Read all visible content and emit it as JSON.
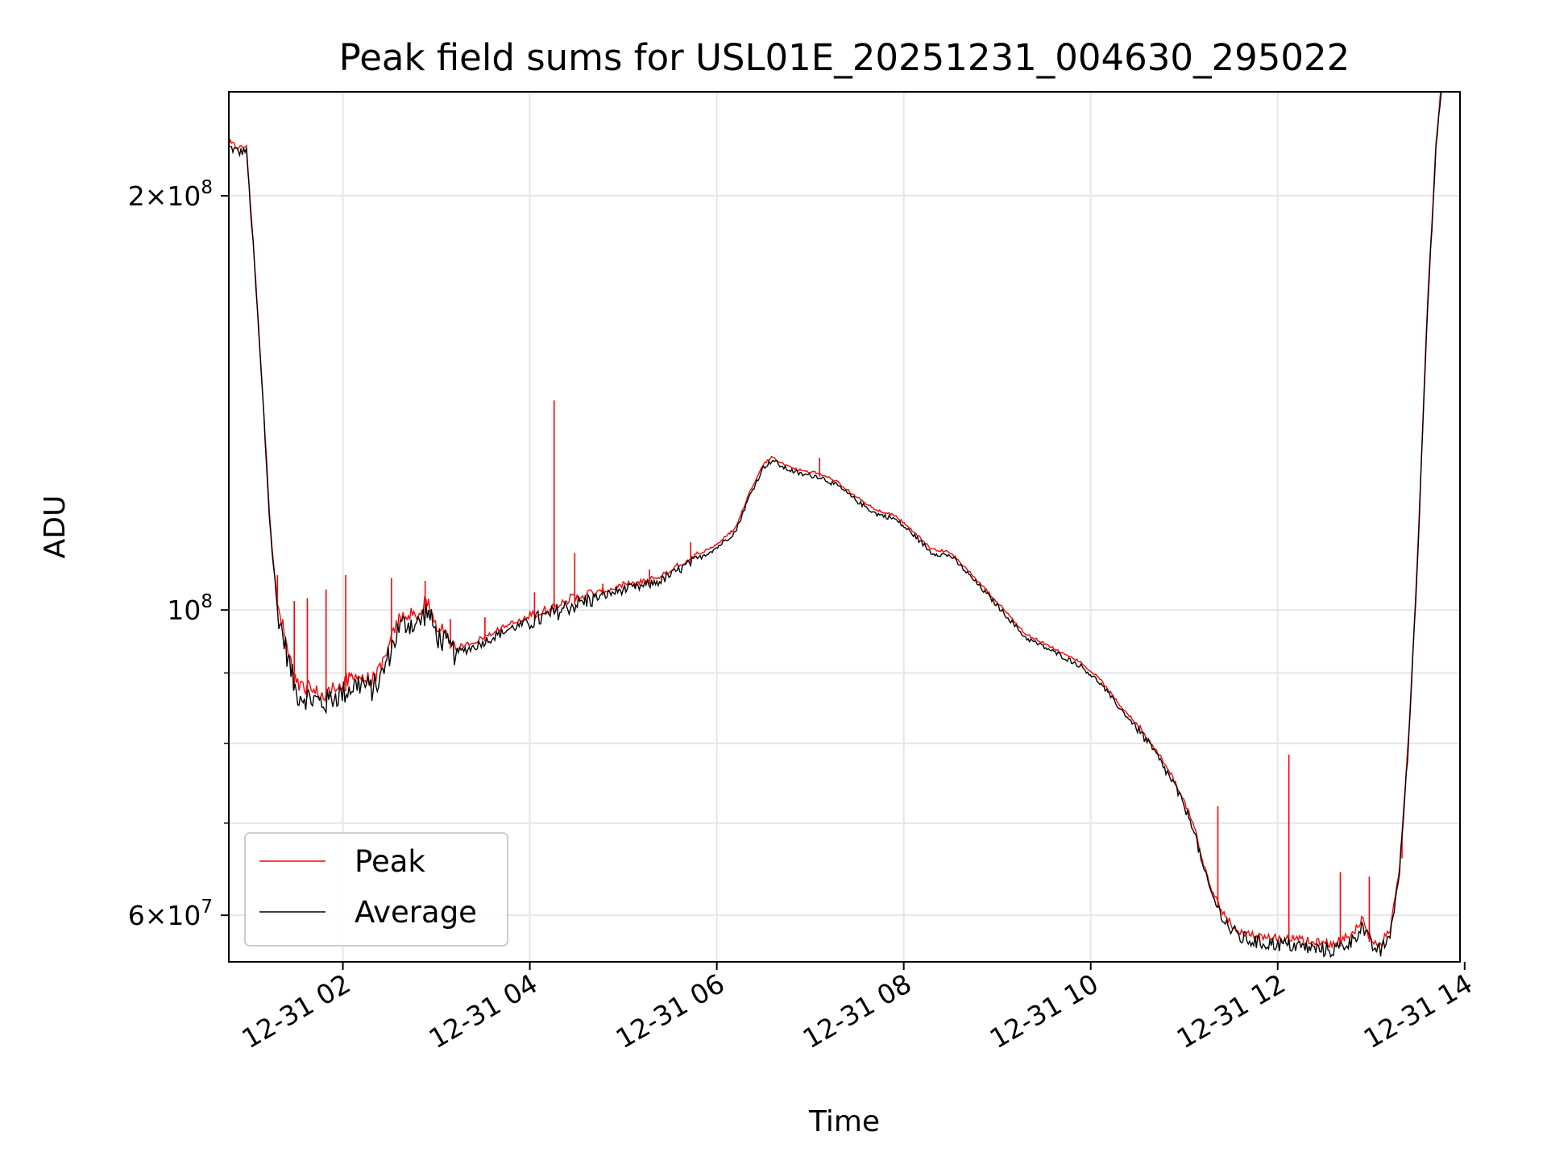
{
  "chart_data": {
    "type": "line",
    "title": "Peak field sums for USL01E_20251231_004630_295022",
    "xlabel": "Time",
    "ylabel": "ADU",
    "yscale": "log",
    "xlim": [
      0.78,
      13.95
    ],
    "ylim": [
      55500000,
      238000000
    ],
    "grid": true,
    "legend": "lower-left",
    "x_ticks": [
      {
        "value": 2,
        "label": "12-31 02"
      },
      {
        "value": 4,
        "label": "12-31 04"
      },
      {
        "value": 6,
        "label": "12-31 06"
      },
      {
        "value": 8,
        "label": "12-31 08"
      },
      {
        "value": 10,
        "label": "12-31 10"
      },
      {
        "value": 12,
        "label": "12-31 12"
      },
      {
        "value": 14,
        "label": "12-31 14"
      }
    ],
    "y_ticks": [
      {
        "value": 60000000,
        "mant": "6",
        "exp": "7"
      },
      {
        "value": 100000000,
        "mant": "",
        "exp": "8"
      },
      {
        "value": 200000000,
        "mant": "2",
        "exp": "8"
      }
    ],
    "y_minor": [
      70000000,
      80000000,
      90000000
    ],
    "x_time_unit": "hours since 12-31 00:00",
    "series": [
      {
        "name": "Average",
        "color": "#000000",
        "points": [
          [
            0.78,
            217000000
          ],
          [
            0.9,
            215000000
          ],
          [
            0.95,
            216000000
          ],
          [
            0.97,
            215000000
          ],
          [
            1.05,
            180000000
          ],
          [
            1.15,
            140000000
          ],
          [
            1.22,
            115000000
          ],
          [
            1.3,
            100000000
          ],
          [
            1.4,
            93000000
          ],
          [
            1.5,
            87000000
          ],
          [
            1.6,
            86500000
          ],
          [
            1.7,
            86000000
          ],
          [
            1.8,
            85500000
          ],
          [
            1.9,
            86500000
          ],
          [
            2.0,
            87000000
          ],
          [
            2.1,
            88000000
          ],
          [
            2.2,
            88500000
          ],
          [
            2.3,
            87500000
          ],
          [
            2.4,
            89000000
          ],
          [
            2.5,
            93000000
          ],
          [
            2.6,
            97000000
          ],
          [
            2.7,
            98000000
          ],
          [
            2.8,
            97500000
          ],
          [
            2.9,
            100000000
          ],
          [
            3.0,
            96000000
          ],
          [
            3.2,
            93000000
          ],
          [
            3.4,
            94000000
          ],
          [
            3.6,
            95500000
          ],
          [
            3.8,
            97000000
          ],
          [
            4.0,
            98000000
          ],
          [
            4.2,
            99000000
          ],
          [
            4.4,
            100500000
          ],
          [
            4.6,
            101500000
          ],
          [
            4.8,
            102500000
          ],
          [
            5.0,
            103500000
          ],
          [
            5.2,
            104000000
          ],
          [
            5.4,
            105000000
          ],
          [
            5.6,
            107000000
          ],
          [
            5.8,
            109000000
          ],
          [
            6.0,
            111000000
          ],
          [
            6.2,
            114000000
          ],
          [
            6.35,
            121000000
          ],
          [
            6.5,
            127000000
          ],
          [
            6.6,
            128500000
          ],
          [
            6.7,
            127000000
          ],
          [
            6.9,
            125500000
          ],
          [
            7.1,
            125000000
          ],
          [
            7.3,
            123000000
          ],
          [
            7.5,
            120000000
          ],
          [
            7.7,
            117500000
          ],
          [
            7.9,
            116500000
          ],
          [
            8.1,
            113500000
          ],
          [
            8.3,
            110000000
          ],
          [
            8.5,
            109500000
          ],
          [
            8.7,
            106000000
          ],
          [
            8.9,
            102500000
          ],
          [
            9.1,
            99000000
          ],
          [
            9.3,
            95500000
          ],
          [
            9.5,
            94000000
          ],
          [
            9.7,
            92500000
          ],
          [
            9.9,
            91000000
          ],
          [
            10.1,
            88500000
          ],
          [
            10.3,
            85000000
          ],
          [
            10.5,
            82000000
          ],
          [
            10.7,
            78500000
          ],
          [
            10.9,
            74500000
          ],
          [
            11.1,
            69500000
          ],
          [
            11.2,
            65000000
          ],
          [
            11.3,
            62000000
          ],
          [
            11.4,
            60000000
          ],
          [
            11.5,
            58500000
          ],
          [
            11.6,
            57800000
          ],
          [
            11.8,
            57300000
          ],
          [
            12.0,
            57200000
          ],
          [
            12.2,
            57000000
          ],
          [
            12.4,
            56700000
          ],
          [
            12.6,
            56600000
          ],
          [
            12.8,
            57500000
          ],
          [
            12.9,
            59000000
          ],
          [
            13.0,
            57000000
          ],
          [
            13.1,
            56500000
          ],
          [
            13.2,
            58000000
          ],
          [
            13.3,
            64000000
          ],
          [
            13.4,
            80000000
          ],
          [
            13.5,
            110000000
          ],
          [
            13.6,
            165000000
          ],
          [
            13.7,
            220000000
          ],
          [
            13.75,
            238000000
          ]
        ]
      },
      {
        "name": "Peak",
        "color": "#ff0000",
        "spikes": [
          [
            1.3,
            106000000
          ],
          [
            1.48,
            101500000
          ],
          [
            1.62,
            102000000
          ],
          [
            1.82,
            103500000
          ],
          [
            2.03,
            106000000
          ],
          [
            2.52,
            105500000
          ],
          [
            2.88,
            105000000
          ],
          [
            3.15,
            98500000
          ],
          [
            3.52,
            98800000
          ],
          [
            4.05,
            103000000
          ],
          [
            4.26,
            142000000
          ],
          [
            4.48,
            110000000
          ],
          [
            4.78,
            104500000
          ],
          [
            5.02,
            104000000
          ],
          [
            5.28,
            107000000
          ],
          [
            5.72,
            112000000
          ],
          [
            7.1,
            129000000
          ],
          [
            11.36,
            72000000
          ],
          [
            12.12,
            78500000
          ],
          [
            12.67,
            64500000
          ],
          [
            12.98,
            64000000
          ],
          [
            13.33,
            66000000
          ]
        ]
      }
    ]
  }
}
